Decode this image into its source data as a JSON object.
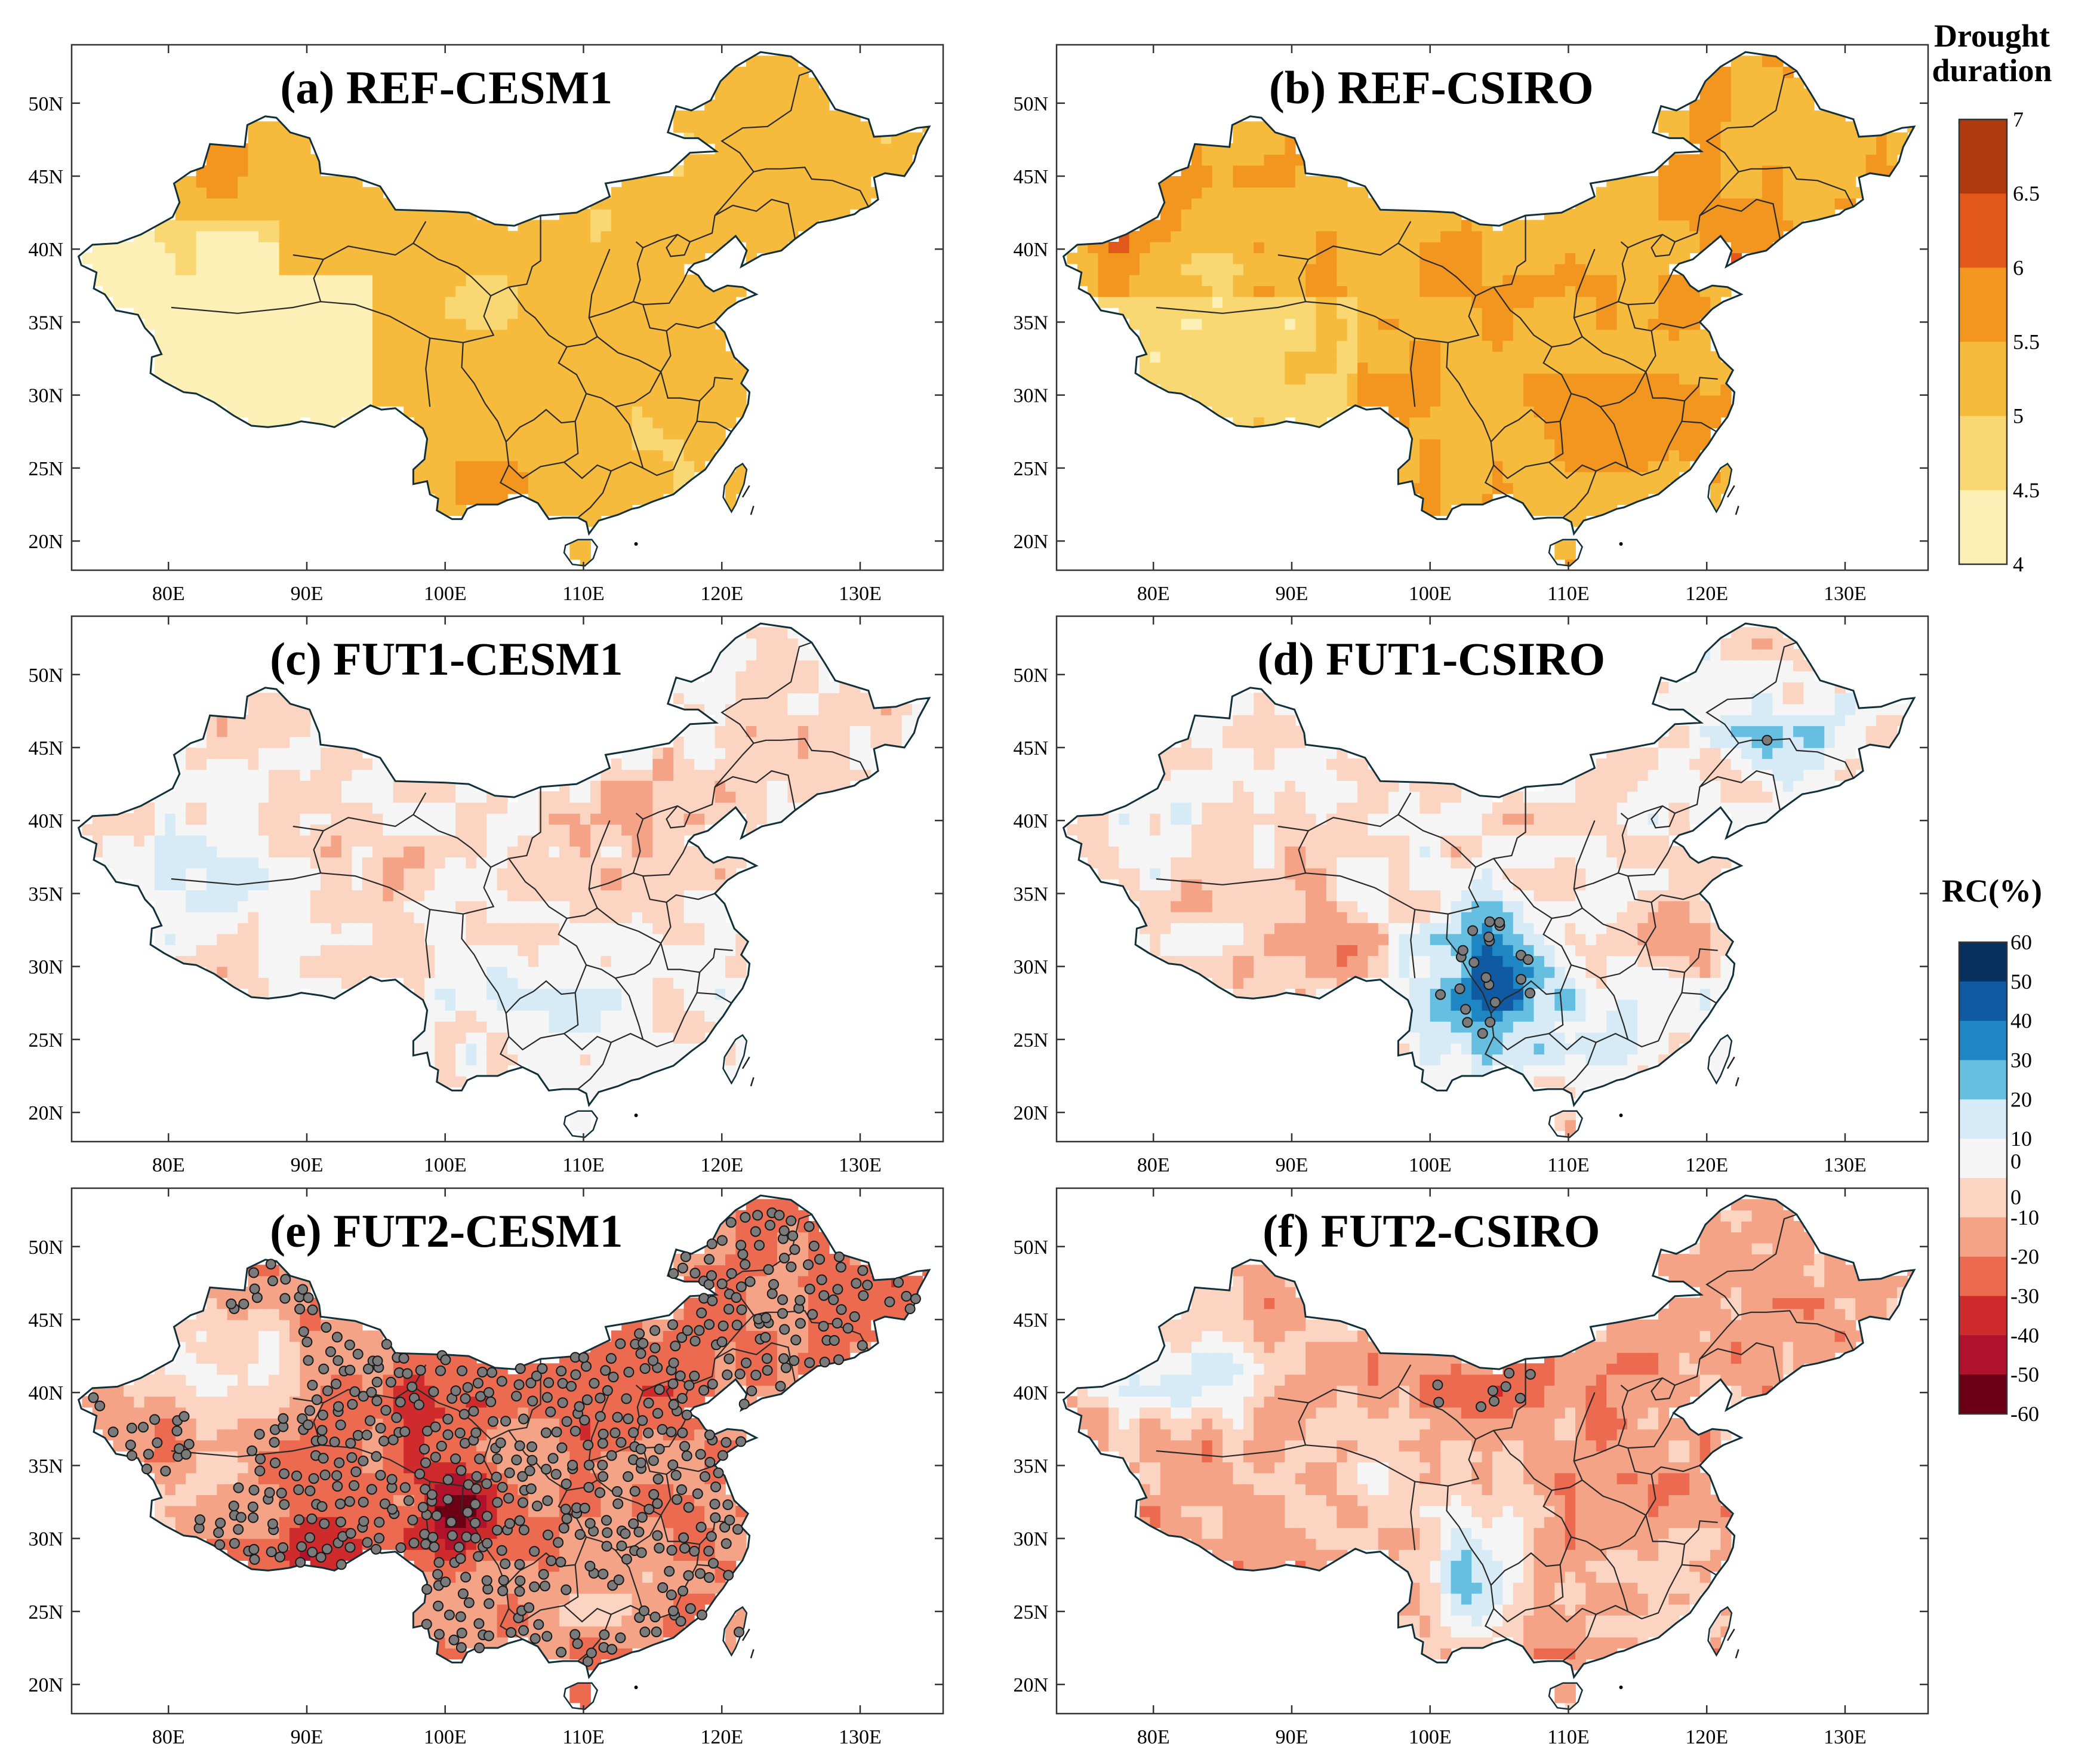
{
  "panels": [
    {
      "id": "a",
      "title": "(a) REF-CESM1",
      "scale": "duration",
      "pattern": "ref_cesm1"
    },
    {
      "id": "b",
      "title": "(b) REF-CSIRO",
      "scale": "duration",
      "pattern": "ref_csiro"
    },
    {
      "id": "c",
      "title": "(c) FUT1-CESM1",
      "scale": "rc",
      "pattern": "fut1_cesm1"
    },
    {
      "id": "d",
      "title": "(d) FUT1-CSIRO",
      "scale": "rc",
      "pattern": "fut1_csiro"
    },
    {
      "id": "e",
      "title": "(e) FUT2-CESM1",
      "scale": "rc",
      "pattern": "fut2_cesm1"
    },
    {
      "id": "f",
      "title": "(f) FUT2-CSIRO",
      "scale": "rc",
      "pattern": "fut2_csiro"
    }
  ],
  "axes": {
    "lon_range": [
      73,
      136
    ],
    "lat_range": [
      18,
      54
    ],
    "x_ticks": [
      "80E",
      "90E",
      "100E",
      "110E",
      "120E",
      "130E"
    ],
    "x_tick_values": [
      80,
      90,
      100,
      110,
      120,
      130
    ],
    "y_ticks": [
      "50N",
      "45N",
      "40N",
      "35N",
      "30N",
      "25N",
      "20N"
    ],
    "y_tick_values": [
      50,
      45,
      40,
      35,
      30,
      25,
      20
    ]
  },
  "legend_duration": {
    "title_line1": "Drought",
    "title_line2": "duration",
    "labels": [
      "7",
      "6.5",
      "6",
      "5.5",
      "5",
      "4.5",
      "4"
    ],
    "colors": [
      "#b03a10",
      "#e2571a",
      "#f2961f",
      "#f6ba3c",
      "#f9d772",
      "#fdf0b6"
    ]
  },
  "legend_rc": {
    "title": "RC(%)",
    "labels": [
      "60",
      "50",
      "40",
      "30",
      "20",
      "10",
      "0",
      "0",
      "-10",
      "-20",
      "-30",
      "-40",
      "-50",
      "-60"
    ],
    "colors": [
      "#08305e",
      "#0f5aa3",
      "#1d86c3",
      "#66bfe1",
      "#d6ebf5",
      "#f5f5f5",
      "#fbd4c2",
      "#f4a386",
      "#eb6a50",
      "#d02b2c",
      "#b0112b",
      "#6b0015"
    ]
  },
  "site_marker_color": "#7a7a7a"
}
